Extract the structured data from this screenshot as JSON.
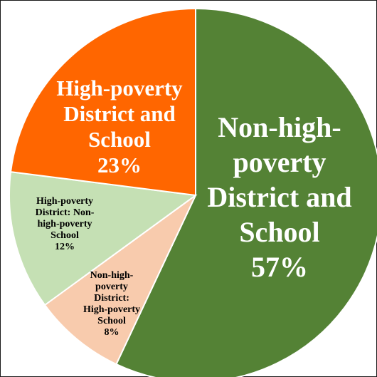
{
  "chart_data": {
    "type": "pie",
    "title": "",
    "slices": [
      {
        "label_lines": [
          "Non-high-",
          "poverty",
          "District and",
          "School",
          "57%"
        ],
        "value": 57,
        "color": "#548235",
        "label_color": "#ffffff"
      },
      {
        "label_lines": [
          "Non-high-",
          "poverty",
          "District:",
          "High-poverty",
          "School",
          "8%"
        ],
        "value": 8,
        "color": "#f8cbad",
        "label_color": "#000000"
      },
      {
        "label_lines": [
          "High-poverty",
          "District: Non-",
          "high-poverty",
          "School",
          "12%"
        ],
        "value": 12,
        "color": "#c5e0b4",
        "label_color": "#000000"
      },
      {
        "label_lines": [
          "High-poverty",
          "District and",
          "School",
          "23%"
        ],
        "value": 23,
        "color": "#ff6600",
        "label_color": "#ffffff"
      }
    ]
  }
}
